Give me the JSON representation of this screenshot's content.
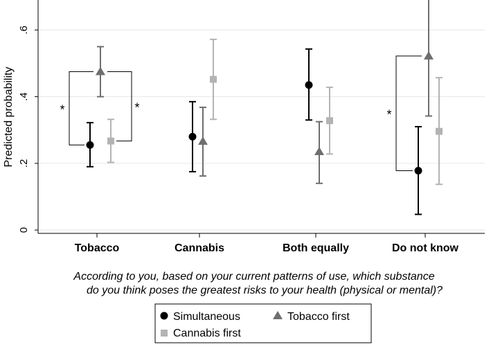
{
  "chart_data": {
    "type": "scatter",
    "ylabel": "Predicted probability",
    "xlabel_lines": [
      "According to you, based on your current patterns of use, which substance",
      "do you think poses the greatest risks to your health (physical or mental)?"
    ],
    "ylim": [
      -0.01,
      0.69
    ],
    "yticks": [
      0,
      0.2,
      0.4,
      0.6
    ],
    "ytick_labels": [
      "0",
      ".2",
      ".4",
      ".6"
    ],
    "grid": true,
    "categories": [
      "Tobacco",
      "Cannabis",
      "Both equally",
      "Do not know"
    ],
    "legend_position": "bottom",
    "series": [
      {
        "name": "Simultaneous",
        "marker": "circle",
        "color": "#000000",
        "values": [
          0.255,
          0.28,
          0.435,
          0.178
        ],
        "ci_low": [
          0.19,
          0.175,
          0.33,
          0.047
        ],
        "ci_high": [
          0.322,
          0.385,
          0.543,
          0.31
        ]
      },
      {
        "name": "Tobacco first",
        "marker": "triangle",
        "color": "#6e6e6e",
        "values": [
          0.475,
          0.266,
          0.235,
          0.522
        ],
        "ci_low": [
          0.4,
          0.162,
          0.14,
          0.342
        ],
        "ci_high": [
          0.55,
          0.368,
          0.325,
          0.703
        ]
      },
      {
        "name": "Cannabis first",
        "marker": "square",
        "color": "#b3b3b3",
        "values": [
          0.267,
          0.452,
          0.328,
          0.296
        ],
        "ci_low": [
          0.203,
          0.332,
          0.228,
          0.137
        ],
        "ci_high": [
          0.332,
          0.572,
          0.428,
          0.457
        ]
      }
    ],
    "annotations": [
      {
        "text": "*",
        "category": "Tobacco",
        "between": [
          "Simultaneous",
          "Tobacco first"
        ]
      },
      {
        "text": "*",
        "category": "Tobacco",
        "between": [
          "Tobacco first",
          "Cannabis first"
        ]
      },
      {
        "text": "*",
        "category": "Do not know",
        "between": [
          "Simultaneous",
          "Tobacco first"
        ]
      }
    ]
  }
}
